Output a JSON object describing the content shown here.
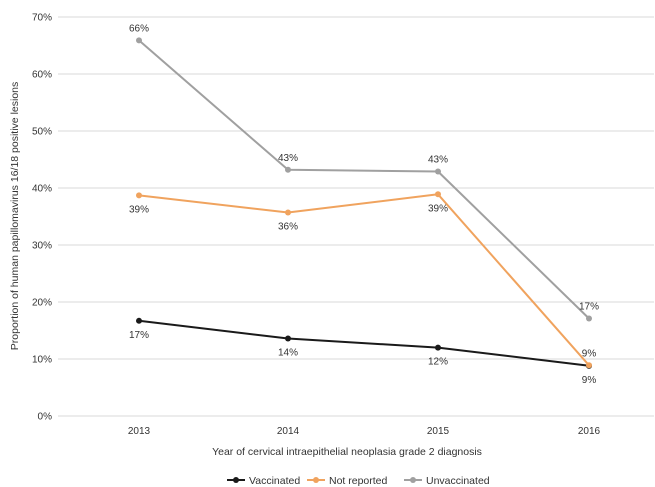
{
  "chart_data": {
    "type": "line",
    "title": "",
    "xlabel": "Year of cervical intraepithelial neoplasia grade 2 diagnosis",
    "ylabel": "Proportion of human papillomavirus 16/18 positive lesions",
    "categories": [
      "2013",
      "2014",
      "2015",
      "2016"
    ],
    "ylim": [
      0,
      70
    ],
    "yticks": [
      0,
      10,
      20,
      30,
      40,
      50,
      60,
      70
    ],
    "ytick_labels": [
      "0%",
      "10%",
      "20%",
      "30%",
      "40%",
      "50%",
      "60%",
      "70%"
    ],
    "grid": true,
    "legend_position": "bottom",
    "series": [
      {
        "name": "Vaccinated",
        "color": "#1a1a1a",
        "values": [
          16.7,
          13.6,
          12.0,
          8.8
        ],
        "labels": [
          "17%",
          "14%",
          "12%",
          "9%"
        ],
        "label_positions": [
          "below",
          "below",
          "below",
          "below"
        ]
      },
      {
        "name": "Not reported",
        "color": "#f0a35e",
        "values": [
          38.7,
          35.7,
          38.9,
          8.9
        ],
        "labels": [
          "39%",
          "36%",
          "39%",
          "9%"
        ],
        "label_positions": [
          "below",
          "below",
          "below",
          "above"
        ]
      },
      {
        "name": "Unvaccinated",
        "color": "#a0a0a0",
        "values": [
          65.9,
          43.2,
          42.9,
          17.1
        ],
        "labels": [
          "66%",
          "43%",
          "43%",
          "17%"
        ],
        "label_positions": [
          "above",
          "above",
          "above",
          "above"
        ]
      }
    ]
  }
}
